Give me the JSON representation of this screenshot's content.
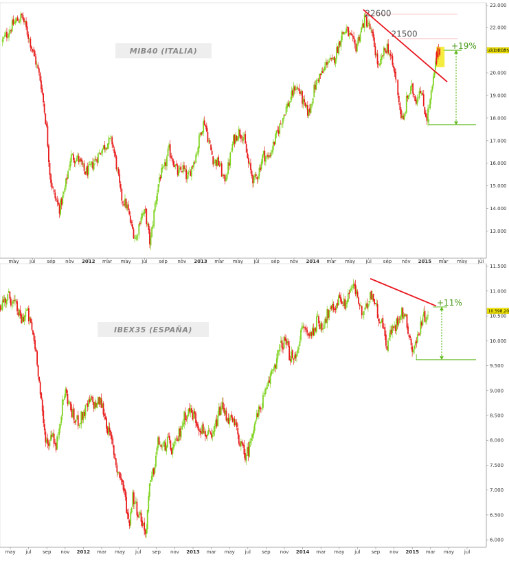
{
  "chart_data": [
    {
      "type": "candlestick",
      "title": "MIB40 (ITALIA)",
      "ylim": [
        11800,
        23100
      ],
      "y_ticks": [
        13000,
        14000,
        15000,
        16000,
        17000,
        18000,
        19000,
        20000,
        21000,
        22000,
        23000
      ],
      "y_tick_labels": [
        "13.000",
        "14.000",
        "15.000",
        "16.000",
        "17.000",
        "18.000",
        "19.000",
        "20.000",
        "21.000",
        "22.000",
        "23.000"
      ],
      "x_labels": [
        {
          "text": "may",
          "t": 0.0
        },
        {
          "text": "jul",
          "t": 2.0
        },
        {
          "text": "sep",
          "t": 4.0
        },
        {
          "text": "nov",
          "t": 6.0
        },
        {
          "text": "2012",
          "t": 8.0,
          "year": true
        },
        {
          "text": "mar",
          "t": 10.0
        },
        {
          "text": "may",
          "t": 12.0
        },
        {
          "text": "jul",
          "t": 14.0
        },
        {
          "text": "sep",
          "t": 16.0
        },
        {
          "text": "nov",
          "t": 18.0
        },
        {
          "text": "2013",
          "t": 20.0,
          "year": true
        },
        {
          "text": "mar",
          "t": 22.0
        },
        {
          "text": "may",
          "t": 24.0
        },
        {
          "text": "jul",
          "t": 26.0
        },
        {
          "text": "sep",
          "t": 28.0
        },
        {
          "text": "nov",
          "t": 30.0
        },
        {
          "text": "2014",
          "t": 32.0,
          "year": true
        },
        {
          "text": "mar",
          "t": 34.0
        },
        {
          "text": "may",
          "t": 36.0
        },
        {
          "text": "jul",
          "t": 38.0
        },
        {
          "text": "sep",
          "t": 40.0
        },
        {
          "text": "nov",
          "t": 42.0
        },
        {
          "text": "2015",
          "t": 44.0,
          "year": true
        },
        {
          "text": "mar",
          "t": 46.0
        },
        {
          "text": "may",
          "t": 48.0
        },
        {
          "text": "jul",
          "t": 50.0
        }
      ],
      "price_points": [
        [
          -1.2,
          21400
        ],
        [
          0.0,
          22200
        ],
        [
          0.9,
          22500
        ],
        [
          1.6,
          21600
        ],
        [
          2.3,
          20600
        ],
        [
          2.9,
          19600
        ],
        [
          3.5,
          17600
        ],
        [
          3.9,
          15400
        ],
        [
          4.3,
          14600
        ],
        [
          4.9,
          14000
        ],
        [
          5.4,
          14700
        ],
        [
          6.1,
          16300
        ],
        [
          6.9,
          16200
        ],
        [
          7.6,
          15600
        ],
        [
          8.1,
          15700
        ],
        [
          8.8,
          16200
        ],
        [
          9.4,
          16600
        ],
        [
          10.0,
          16900
        ],
        [
          10.5,
          17000
        ],
        [
          11.0,
          15900
        ],
        [
          11.5,
          14500
        ],
        [
          12.1,
          14100
        ],
        [
          12.6,
          13200
        ],
        [
          13.1,
          12600
        ],
        [
          13.6,
          13700
        ],
        [
          14.1,
          13800
        ],
        [
          14.6,
          12400
        ],
        [
          15.1,
          14100
        ],
        [
          15.6,
          15400
        ],
        [
          16.1,
          15700
        ],
        [
          16.6,
          16600
        ],
        [
          17.1,
          16100
        ],
        [
          17.6,
          15500
        ],
        [
          18.1,
          15800
        ],
        [
          18.6,
          15300
        ],
        [
          19.1,
          15900
        ],
        [
          19.6,
          16500
        ],
        [
          20.0,
          17400
        ],
        [
          20.4,
          17900
        ],
        [
          20.9,
          16900
        ],
        [
          21.4,
          16100
        ],
        [
          22.0,
          16000
        ],
        [
          22.5,
          15200
        ],
        [
          23.0,
          15900
        ],
        [
          23.5,
          17000
        ],
        [
          24.1,
          17400
        ],
        [
          24.6,
          17200
        ],
        [
          25.1,
          16000
        ],
        [
          25.7,
          15200
        ],
        [
          26.2,
          15600
        ],
        [
          26.7,
          16400
        ],
        [
          27.2,
          16200
        ],
        [
          27.6,
          16600
        ],
        [
          28.1,
          17200
        ],
        [
          28.6,
          17800
        ],
        [
          29.1,
          18400
        ],
        [
          29.6,
          18800
        ],
        [
          30.1,
          19400
        ],
        [
          30.6,
          19200
        ],
        [
          31.1,
          18500
        ],
        [
          31.6,
          18200
        ],
        [
          32.1,
          19200
        ],
        [
          32.6,
          19800
        ],
        [
          33.1,
          20000
        ],
        [
          33.6,
          20600
        ],
        [
          34.1,
          20400
        ],
        [
          34.6,
          21000
        ],
        [
          35.1,
          21700
        ],
        [
          35.6,
          21900
        ],
        [
          36.1,
          21500
        ],
        [
          36.6,
          21100
        ],
        [
          37.1,
          21800
        ],
        [
          37.6,
          22400
        ],
        [
          38.1,
          22000
        ],
        [
          38.6,
          21200
        ],
        [
          39.1,
          20100
        ],
        [
          39.5,
          20800
        ],
        [
          40.0,
          21200
        ],
        [
          40.5,
          20400
        ],
        [
          41.0,
          19600
        ],
        [
          41.4,
          18200
        ],
        [
          41.7,
          17800
        ],
        [
          42.1,
          18900
        ],
        [
          42.6,
          19300
        ],
        [
          43.1,
          18800
        ],
        [
          43.5,
          19400
        ],
        [
          43.9,
          18500
        ],
        [
          44.2,
          18000
        ],
        [
          44.6,
          18800
        ],
        [
          45.0,
          19900
        ],
        [
          45.3,
          20800
        ],
        [
          45.6,
          21000
        ]
      ],
      "annotations": [
        {
          "text": "22600",
          "value": 22600
        },
        {
          "text": "21500",
          "value": 21500
        },
        {
          "text": "+19%",
          "from": 17700,
          "to": 21000
        }
      ],
      "current_price": "21.011,55",
      "trendline": [
        [
          37.4,
          22800
        ],
        [
          46.4,
          19600
        ]
      ],
      "support": 17700,
      "colors": {
        "up": "#7fd321",
        "down": "#e81c1c",
        "trend": "#e8141c",
        "guide": "#5cb818",
        "resistance": "#f2b8b8",
        "highlight": "#f2e600"
      }
    },
    {
      "type": "candlestick",
      "title": "IBEX35 (ESPAÑA)",
      "ylim": [
        5850,
        11550
      ],
      "y_ticks": [
        6000,
        6500,
        7000,
        7500,
        8000,
        8500,
        9000,
        9500,
        10000,
        10500,
        11000,
        11500
      ],
      "y_tick_labels": [
        "6.000",
        "6.500",
        "7.000",
        "7.500",
        "8.000",
        "8.500",
        "9.000",
        "9.500",
        "10.000",
        "10.500",
        "11.000",
        "11.500"
      ],
      "x_labels": [
        {
          "text": "may",
          "t": 0.0
        },
        {
          "text": "jul",
          "t": 2.0
        },
        {
          "text": "sep",
          "t": 4.0
        },
        {
          "text": "nov",
          "t": 6.0
        },
        {
          "text": "2012",
          "t": 8.0,
          "year": true
        },
        {
          "text": "mar",
          "t": 10.0
        },
        {
          "text": "may",
          "t": 12.0
        },
        {
          "text": "jul",
          "t": 14.0
        },
        {
          "text": "sep",
          "t": 16.0
        },
        {
          "text": "nov",
          "t": 18.0
        },
        {
          "text": "2013",
          "t": 20.0,
          "year": true
        },
        {
          "text": "mar",
          "t": 22.0
        },
        {
          "text": "may",
          "t": 24.0
        },
        {
          "text": "jul",
          "t": 26.0
        },
        {
          "text": "sep",
          "t": 28.0
        },
        {
          "text": "nov",
          "t": 30.0
        },
        {
          "text": "2014",
          "t": 32.0,
          "year": true
        },
        {
          "text": "mar",
          "t": 34.0
        },
        {
          "text": "may",
          "t": 36.0
        },
        {
          "text": "jul",
          "t": 38.0
        },
        {
          "text": "sep",
          "t": 40.0
        },
        {
          "text": "nov",
          "t": 42.0
        },
        {
          "text": "2015",
          "t": 44.0,
          "year": true
        },
        {
          "text": "mar",
          "t": 46.0
        },
        {
          "text": "may",
          "t": 48.0
        },
        {
          "text": "jul",
          "t": 50.0
        }
      ],
      "price_points": [
        [
          -1.2,
          10700
        ],
        [
          -0.2,
          10900
        ],
        [
          0.6,
          10700
        ],
        [
          1.2,
          10400
        ],
        [
          1.8,
          10600
        ],
        [
          2.4,
          10200
        ],
        [
          2.9,
          9700
        ],
        [
          3.3,
          8900
        ],
        [
          3.7,
          8200
        ],
        [
          4.1,
          7900
        ],
        [
          4.6,
          8200
        ],
        [
          5.0,
          7800
        ],
        [
          5.5,
          8500
        ],
        [
          6.0,
          9000
        ],
        [
          6.5,
          8700
        ],
        [
          7.0,
          8400
        ],
        [
          7.6,
          8400
        ],
        [
          8.2,
          8600
        ],
        [
          8.8,
          8800
        ],
        [
          9.3,
          8700
        ],
        [
          9.8,
          8800
        ],
        [
          10.2,
          8600
        ],
        [
          10.7,
          8200
        ],
        [
          11.2,
          7900
        ],
        [
          11.7,
          7400
        ],
        [
          12.2,
          7200
        ],
        [
          12.6,
          6800
        ],
        [
          13.0,
          6300
        ],
        [
          13.4,
          6900
        ],
        [
          13.9,
          6600
        ],
        [
          14.4,
          6400
        ],
        [
          14.8,
          6100
        ],
        [
          15.2,
          7000
        ],
        [
          15.7,
          7400
        ],
        [
          16.2,
          8000
        ],
        [
          16.7,
          7800
        ],
        [
          17.2,
          8000
        ],
        [
          17.6,
          7800
        ],
        [
          18.1,
          7900
        ],
        [
          18.6,
          8200
        ],
        [
          19.1,
          8500
        ],
        [
          19.6,
          8600
        ],
        [
          20.1,
          8500
        ],
        [
          20.6,
          8300
        ],
        [
          21.1,
          8200
        ],
        [
          21.6,
          8100
        ],
        [
          22.1,
          8000
        ],
        [
          22.6,
          8400
        ],
        [
          23.1,
          8700
        ],
        [
          23.6,
          8500
        ],
        [
          24.1,
          8400
        ],
        [
          24.6,
          8300
        ],
        [
          25.1,
          8000
        ],
        [
          25.6,
          7700
        ],
        [
          26.1,
          7800
        ],
        [
          26.6,
          8300
        ],
        [
          27.1,
          8500
        ],
        [
          27.6,
          8800
        ],
        [
          28.1,
          9000
        ],
        [
          28.6,
          9400
        ],
        [
          29.1,
          9600
        ],
        [
          29.6,
          9900
        ],
        [
          30.1,
          10000
        ],
        [
          30.6,
          9700
        ],
        [
          31.1,
          9600
        ],
        [
          31.6,
          10000
        ],
        [
          32.1,
          10300
        ],
        [
          32.6,
          10100
        ],
        [
          33.1,
          10200
        ],
        [
          33.6,
          10400
        ],
        [
          34.1,
          10300
        ],
        [
          34.6,
          10500
        ],
        [
          35.1,
          10600
        ],
        [
          35.6,
          10700
        ],
        [
          36.1,
          10900
        ],
        [
          36.6,
          10700
        ],
        [
          37.1,
          11000
        ],
        [
          37.5,
          11100
        ],
        [
          38.0,
          10900
        ],
        [
          38.5,
          10500
        ],
        [
          38.9,
          10600
        ],
        [
          39.4,
          11000
        ],
        [
          39.9,
          10800
        ],
        [
          40.3,
          10500
        ],
        [
          40.8,
          10300
        ],
        [
          41.2,
          9900
        ],
        [
          41.7,
          10200
        ],
        [
          42.2,
          10300
        ],
        [
          42.7,
          10600
        ],
        [
          43.2,
          10500
        ],
        [
          43.6,
          10200
        ],
        [
          44.0,
          9800
        ],
        [
          44.5,
          10000
        ],
        [
          45.0,
          10400
        ],
        [
          45.4,
          10500
        ],
        [
          45.8,
          10600
        ]
      ],
      "annotations": [
        {
          "text": "+11%",
          "from": 9620,
          "to": 10680
        }
      ],
      "current_price": "10.598,20",
      "trendline": [
        [
          39.4,
          11250
        ],
        [
          46.6,
          10700
        ]
      ],
      "support": 9620,
      "colors": {
        "up": "#7fd321",
        "down": "#e81c1c",
        "trend": "#e8141c",
        "guide": "#5cb818"
      }
    }
  ]
}
